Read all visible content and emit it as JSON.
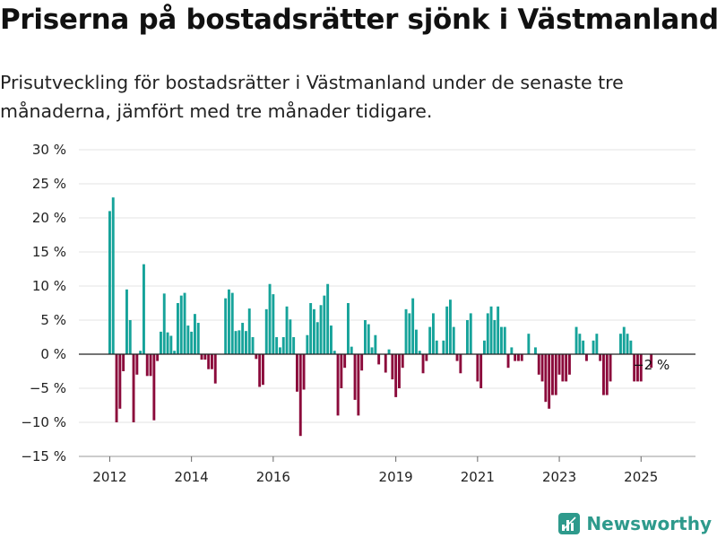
{
  "header": {
    "title": "Priserna på bostadsrätter sjönk i Västmanland",
    "subtitle": "Prisutveckling för bostadsrätter i Västmanland under de senaste tre månaderna, jämfört med tre månader tidigare."
  },
  "brand": {
    "name": "Newsworthy",
    "icon": "newsworthy-logo-icon",
    "color": "#2e9a8c"
  },
  "colors": {
    "positive": "#16a39a",
    "negative": "#8b0a3b",
    "grid": "#e3e3e3",
    "zero": "#222222"
  },
  "chart_data": {
    "type": "bar",
    "ylim": [
      -15,
      30
    ],
    "yticks": [
      -15,
      -10,
      -5,
      0,
      5,
      10,
      15,
      20,
      25,
      30
    ],
    "ytick_labels": [
      "−15 %",
      "−10 %",
      "−5 %",
      "0 %",
      "5 %",
      "10 %",
      "15 %",
      "20 %",
      "25 %",
      "30 %"
    ],
    "x_start": "2012-01",
    "x_end": "2025-03",
    "xticks": [
      "2012",
      "2014",
      "2016",
      "2019",
      "2021",
      "2023",
      "2025"
    ],
    "grid": true,
    "last_label": "−2 %",
    "values": [
      21,
      23,
      -10,
      -8,
      -2.5,
      9.5,
      5,
      -10,
      -3,
      0.5,
      13.2,
      -3.2,
      -3.2,
      -9.7,
      -1,
      3.3,
      8.9,
      3.2,
      2.7,
      0.5,
      7.5,
      8.6,
      9,
      4.2,
      3.3,
      5.9,
      4.6,
      -0.8,
      -0.8,
      -2.2,
      -2.2,
      -4.3,
      0,
      0,
      8.2,
      9.5,
      9,
      3.4,
      3.5,
      4.6,
      3.4,
      6.7,
      2.5,
      -0.7,
      -4.8,
      -4.5,
      6.6,
      10.3,
      8.8,
      2.5,
      1,
      2.5,
      7,
      5.1,
      2.5,
      -5.5,
      -12,
      -5.2,
      2.8,
      7.5,
      6.6,
      4.7,
      7.2,
      8.6,
      10.3,
      4.2,
      0.5,
      -9,
      -5,
      -2,
      7.5,
      1.1,
      -6.7,
      -9,
      -2.4,
      5,
      4.4,
      1,
      2.8,
      -1.5,
      0,
      -2.7,
      0.7,
      -3.7,
      -6.3,
      -5,
      -2,
      6.6,
      6,
      8.2,
      3.6,
      0.5,
      -2.8,
      -1,
      4,
      6,
      2,
      0,
      2,
      7,
      8,
      4,
      -1,
      -2.8,
      0,
      5,
      6,
      0,
      -4,
      -5,
      2,
      6,
      7,
      5,
      7,
      4,
      4,
      -2,
      1,
      -1,
      -1,
      -1,
      0,
      3,
      0,
      1,
      -3,
      -4,
      -7,
      -8,
      -6,
      -6,
      -3,
      -4,
      -4,
      -3,
      0,
      4,
      3,
      2,
      -1,
      0,
      2,
      3,
      -1,
      -6,
      -6,
      -4,
      0,
      0,
      3,
      4,
      3,
      2,
      -4,
      -4,
      -4,
      0,
      0,
      -2
    ]
  }
}
